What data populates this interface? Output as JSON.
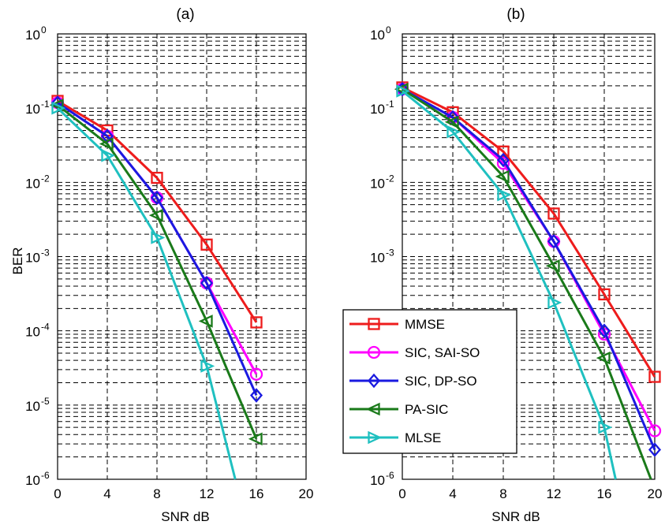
{
  "figure": {
    "ylabel": "BER",
    "xlabel": "SNR dB"
  },
  "legend": {
    "entries": [
      {
        "label": "MMSE",
        "color": "#ee1c1c",
        "marker": "square"
      },
      {
        "label": "SIC, SAI-SO",
        "color": "#ff00ff",
        "marker": "circle"
      },
      {
        "label": "SIC, DP-SO",
        "color": "#1a1ae0",
        "marker": "diamond"
      },
      {
        "label": "PA-SIC",
        "color": "#1a7a1a",
        "marker": "triangle-left"
      },
      {
        "label": "MLSE",
        "color": "#1fc0c0",
        "marker": "triangle-right"
      }
    ]
  },
  "chart_data": [
    {
      "type": "line",
      "title": "(a)",
      "xlabel": "SNR dB",
      "ylabel": "BER",
      "xlim": [
        0,
        20
      ],
      "ylim": [
        1e-06,
        1
      ],
      "yscale": "log",
      "xticks": [
        "0",
        "4",
        "8",
        "12",
        "16",
        "20"
      ],
      "yticks": [
        "10^0",
        "10^-1",
        "10^-2",
        "10^-3",
        "10^-4",
        "10^-5",
        "10^-6"
      ],
      "grid": true,
      "x": [
        0,
        4,
        8,
        12,
        16
      ],
      "series": [
        {
          "name": "MMSE",
          "values": [
            0.125,
            0.05,
            0.0115,
            0.00145,
            0.00013
          ]
        },
        {
          "name": "SIC, SAI-SO",
          "values": [
            0.118,
            0.042,
            0.0062,
            0.00044,
            2.6e-05
          ]
        },
        {
          "name": "SIC, DP-SO",
          "values": [
            0.118,
            0.042,
            0.0062,
            0.00044,
            1.35e-05
          ]
        },
        {
          "name": "PA-SIC",
          "values": [
            0.11,
            0.033,
            0.0036,
            0.000135,
            3.5e-06
          ]
        },
        {
          "name": "MLSE",
          "values": [
            0.1,
            0.023,
            0.0018,
            3.35e-05,
            null
          ],
          "tail": [
            14.3,
            1e-06
          ]
        }
      ]
    },
    {
      "type": "line",
      "title": "(b)",
      "xlabel": "SNR dB",
      "ylabel": "",
      "xlim": [
        0,
        20
      ],
      "ylim": [
        1e-06,
        1
      ],
      "yscale": "log",
      "xticks": [
        "0",
        "4",
        "8",
        "12",
        "16",
        "20"
      ],
      "yticks": [
        "10^0",
        "10^-1",
        "10^-2",
        "10^-3",
        "10^-4",
        "10^-5",
        "10^-6"
      ],
      "grid": true,
      "legend_position": "bottom-left",
      "x": [
        0,
        4,
        8,
        12,
        16,
        20
      ],
      "series": [
        {
          "name": "MMSE",
          "values": [
            0.19,
            0.088,
            0.026,
            0.0038,
            0.00031,
            2.4e-05
          ]
        },
        {
          "name": "SIC, SAI-SO",
          "values": [
            0.18,
            0.075,
            0.018,
            0.0016,
            9e-05,
            4.5e-06
          ]
        },
        {
          "name": "SIC, DP-SO",
          "values": [
            0.18,
            0.075,
            0.02,
            0.0016,
            0.0001,
            2.5e-06
          ]
        },
        {
          "name": "PA-SIC",
          "values": [
            0.18,
            0.065,
            0.012,
            0.00075,
            4.3e-05,
            null
          ],
          "tail": [
            19.7,
            1e-06
          ]
        },
        {
          "name": "MLSE",
          "values": [
            0.17,
            0.048,
            0.0068,
            0.00024,
            5e-06,
            null
          ],
          "tail": [
            16.9,
            1e-06
          ]
        }
      ]
    }
  ]
}
